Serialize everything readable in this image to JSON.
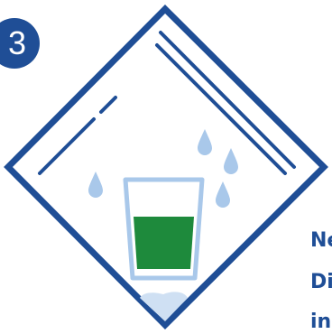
{
  "step": {
    "number": "3"
  },
  "caption": {
    "lines": [
      "Ne",
      "Di",
      "in"
    ]
  },
  "icons": {
    "bag": "zip-bag-icon",
    "glass": "glass-icon",
    "drop": "water-drop-icon",
    "ice": "ice-icon"
  },
  "colors": {
    "primary": "#1f4e96",
    "water": "#a9c8ea",
    "liquid": "#1e8a3c",
    "ice": "#cfe0f3",
    "background": "#ffffff"
  }
}
